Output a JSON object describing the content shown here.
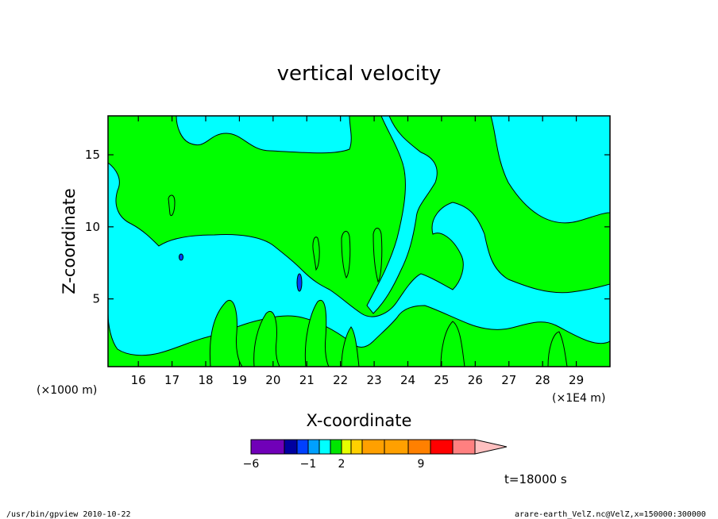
{
  "chart_data": {
    "type": "heatmap",
    "title": "vertical velocity",
    "xlabel": "X-coordinate",
    "ylabel": "Z-coordinate",
    "x_scale_note": "(×1E4 m)",
    "y_scale_note": "(×1000 m)",
    "xlim": [
      15.1,
      30.0
    ],
    "ylim": [
      0.3,
      17.7
    ],
    "x_ticks": [
      16,
      17,
      18,
      19,
      20,
      21,
      22,
      23,
      24,
      25,
      26,
      27,
      28,
      29
    ],
    "y_ticks": [
      5,
      10,
      15
    ],
    "colorbar": {
      "tick_labels": [
        "−6",
        "−1",
        "2",
        "9"
      ],
      "colors": [
        "#7000b8",
        "#0000a0",
        "#0040ff",
        "#00a0ff",
        "#00ffff",
        "#00e600",
        "#e6ff00",
        "#ffd000",
        "#ffa000",
        "#ffa000",
        "#ff8000",
        "#ff0000",
        "#ff8080",
        "#ffc0c0"
      ]
    },
    "regions": [
      {
        "value_class": "near-zero positive (green)",
        "color": "#00ff00"
      },
      {
        "value_class": "near-zero negative (cyan)",
        "color": "#00ffff"
      },
      {
        "value_class": "strong negative (blue)",
        "color": "#0040ff"
      }
    ],
    "time_label": "t=18000 s",
    "footer_left": "/usr/bin/gpview   2010-10-22",
    "footer_right": "arare-earth_VelZ.nc@VelZ,x=150000:300000"
  }
}
